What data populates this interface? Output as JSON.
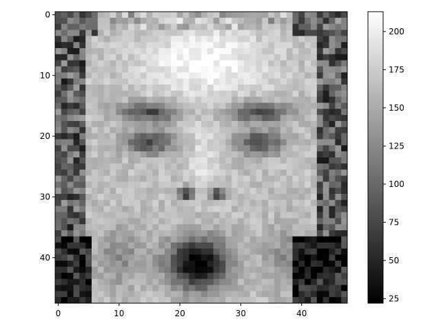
{
  "chart_data": {
    "type": "heatmap",
    "title": "",
    "xlabel": "",
    "ylabel": "",
    "colormap": "gray",
    "image_size": [
      48,
      48
    ],
    "x_ticks": [
      0,
      10,
      20,
      30,
      40
    ],
    "x_tick_labels": [
      "0",
      "10",
      "20",
      "30",
      "40"
    ],
    "y_ticks": [
      0,
      10,
      20,
      30,
      40
    ],
    "y_tick_labels": [
      "0",
      "10",
      "20",
      "30",
      "40"
    ],
    "colorbar": {
      "vmin": 22,
      "vmax": 213,
      "ticks": [
        25,
        50,
        75,
        100,
        125,
        150,
        175,
        200
      ],
      "tick_labels": [
        "25",
        "50",
        "75",
        "100",
        "125",
        "150",
        "175",
        "200"
      ]
    },
    "colors": {
      "low": "#000000",
      "high": "#ffffff",
      "axis": "#000000"
    },
    "image_description_values": "48x48 grayscale face pixel intensities (approximate, procedurally reconstructed)"
  }
}
